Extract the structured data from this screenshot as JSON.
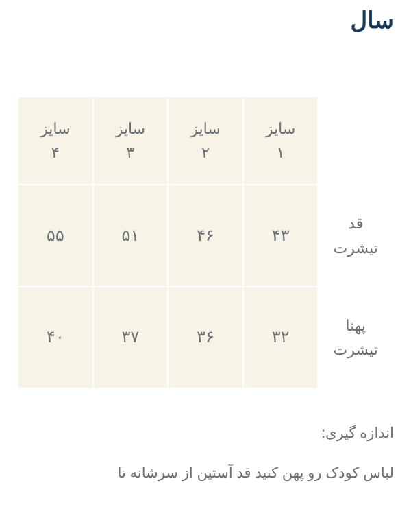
{
  "title": "سال",
  "table": {
    "columns": [
      {
        "line1": "سایز",
        "line2": "۱"
      },
      {
        "line1": "سایز",
        "line2": "۲"
      },
      {
        "line1": "سایز",
        "line2": "۳"
      },
      {
        "line1": "سایز",
        "line2": "۴"
      }
    ],
    "rows": [
      {
        "label_line1": "قد",
        "label_line2": "تیشرت",
        "values": [
          "۴۳",
          "۴۶",
          "۵۱",
          "۵۵"
        ]
      },
      {
        "label_line1": "پهنا",
        "label_line2": "تیشرت",
        "values": [
          "۳۲",
          "۳۶",
          "۳۷",
          "۴۰"
        ]
      }
    ],
    "header_bg": "#f7f4e7",
    "cell_bg": "#f7f4e7",
    "label_bg": "#ffffff",
    "border_color": "#ffffff",
    "text_color": "#6b7072",
    "header_fontsize": 22,
    "value_fontsize": 24
  },
  "notes": {
    "line1": "اندازه گیری:",
    "line2": "لباس کودک رو پهن کنید قد آستین از سرشانه تا"
  },
  "background_color": "#ffffff",
  "title_color": "#1a3a5c"
}
